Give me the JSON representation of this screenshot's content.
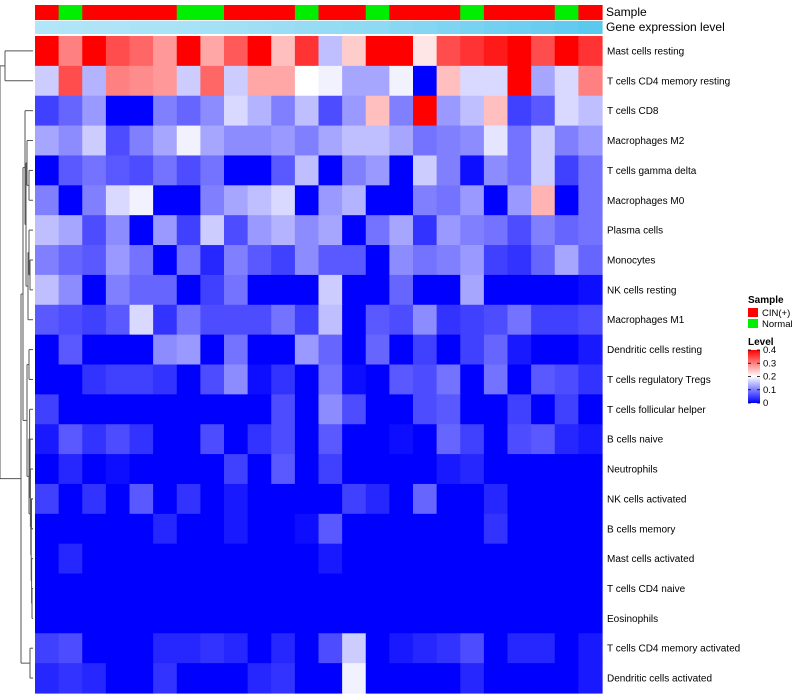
{
  "chart_data": {
    "type": "heatmap",
    "title": "",
    "annotation_labels": {
      "sample": "Sample",
      "expression": "Gene expression level"
    },
    "sample_groups": [
      "CIN(+)",
      "Normal",
      "CIN(+)",
      "CIN(+)",
      "CIN(+)",
      "CIN(+)",
      "Normal",
      "Normal",
      "CIN(+)",
      "CIN(+)",
      "CIN(+)",
      "Normal",
      "CIN(+)",
      "CIN(+)",
      "Normal",
      "CIN(+)",
      "CIN(+)",
      "CIN(+)",
      "Normal",
      "CIN(+)",
      "CIN(+)",
      "CIN(+)",
      "Normal",
      "CIN(+)"
    ],
    "expression_level_bar": [
      0.02,
      0.03,
      0.04,
      0.05,
      0.06,
      0.07,
      0.08,
      0.1,
      0.12,
      0.14,
      0.16,
      0.18,
      0.2,
      0.22,
      0.24,
      0.27,
      0.3,
      0.33,
      0.36,
      0.4,
      0.43,
      0.46,
      0.5,
      0.55
    ],
    "rows": [
      "Mast cells resting",
      "T cells CD4 memory resting",
      "T cells CD8",
      "Macrophages M2",
      "T cells gamma delta",
      "Macrophages M0",
      "Plasma cells",
      "Monocytes",
      "NK cells resting",
      "Macrophages M1",
      "Dendritic cells resting",
      "T cells regulatory  Tregs",
      "T cells follicular helper",
      "B cells naive",
      "Neutrophils",
      "NK cells activated",
      "B cells memory",
      "Mast cells activated",
      "T cells CD4 naive",
      "Eosinophils",
      "T cells CD4 memory activated",
      "Dendritic cells activated"
    ],
    "values": [
      [
        0.4,
        0.3,
        0.4,
        0.34,
        0.32,
        0.28,
        0.4,
        0.27,
        0.33,
        0.4,
        0.25,
        0.36,
        0.15,
        0.24,
        0.4,
        0.4,
        0.22,
        0.34,
        0.36,
        0.38,
        0.4,
        0.34,
        0.4,
        0.36
      ],
      [
        0.16,
        0.34,
        0.14,
        0.3,
        0.29,
        0.28,
        0.16,
        0.32,
        0.16,
        0.27,
        0.27,
        0.2,
        0.19,
        0.13,
        0.13,
        0.19,
        0.0,
        0.25,
        0.17,
        0.17,
        0.4,
        0.13,
        0.17,
        0.3
      ],
      [
        0.05,
        0.08,
        0.12,
        0.0,
        0.0,
        0.1,
        0.08,
        0.11,
        0.17,
        0.14,
        0.1,
        0.15,
        0.06,
        0.12,
        0.25,
        0.1,
        0.4,
        0.12,
        0.15,
        0.25,
        0.05,
        0.07,
        0.17,
        0.15
      ],
      [
        0.13,
        0.11,
        0.16,
        0.06,
        0.1,
        0.13,
        0.19,
        0.13,
        0.11,
        0.11,
        0.12,
        0.1,
        0.13,
        0.15,
        0.15,
        0.13,
        0.09,
        0.1,
        0.11,
        0.18,
        0.09,
        0.16,
        0.1,
        0.12
      ],
      [
        0.0,
        0.07,
        0.09,
        0.07,
        0.06,
        0.09,
        0.06,
        0.09,
        0.0,
        0.0,
        0.07,
        0.15,
        0.0,
        0.1,
        0.12,
        0.0,
        0.16,
        0.1,
        0.01,
        0.11,
        0.09,
        0.16,
        0.05,
        0.09
      ],
      [
        0.1,
        0.0,
        0.1,
        0.17,
        0.19,
        0.0,
        0.0,
        0.1,
        0.13,
        0.15,
        0.17,
        0.0,
        0.12,
        0.14,
        0.0,
        0.0,
        0.1,
        0.09,
        0.12,
        0.0,
        0.12,
        0.26,
        0.0,
        0.09
      ],
      [
        0.15,
        0.13,
        0.06,
        0.11,
        0.0,
        0.12,
        0.05,
        0.16,
        0.06,
        0.12,
        0.14,
        0.11,
        0.13,
        0.0,
        0.09,
        0.13,
        0.04,
        0.12,
        0.1,
        0.09,
        0.06,
        0.1,
        0.08,
        0.09
      ],
      [
        0.1,
        0.08,
        0.07,
        0.12,
        0.09,
        0.0,
        0.09,
        0.03,
        0.1,
        0.07,
        0.05,
        0.11,
        0.07,
        0.07,
        0.0,
        0.11,
        0.09,
        0.1,
        0.12,
        0.05,
        0.04,
        0.08,
        0.13,
        0.08
      ],
      [
        0.15,
        0.11,
        0.0,
        0.1,
        0.08,
        0.08,
        0.0,
        0.05,
        0.09,
        0.0,
        0.0,
        0.0,
        0.16,
        0.0,
        0.0,
        0.08,
        0.0,
        0.0,
        0.13,
        0.0,
        0.0,
        0.0,
        0.0,
        0.01
      ],
      [
        0.07,
        0.06,
        0.05,
        0.07,
        0.17,
        0.04,
        0.09,
        0.06,
        0.06,
        0.06,
        0.09,
        0.05,
        0.15,
        0.0,
        0.07,
        0.06,
        0.11,
        0.04,
        0.05,
        0.06,
        0.09,
        0.05,
        0.05,
        0.06
      ],
      [
        0.0,
        0.07,
        0.0,
        0.0,
        0.0,
        0.11,
        0.12,
        0.0,
        0.09,
        0.0,
        0.0,
        0.12,
        0.08,
        0.0,
        0.08,
        0.0,
        0.05,
        0.0,
        0.05,
        0.08,
        0.02,
        0.0,
        0.0,
        0.02
      ],
      [
        0.0,
        0.0,
        0.04,
        0.05,
        0.05,
        0.04,
        0.0,
        0.06,
        0.11,
        0.01,
        0.04,
        0.0,
        0.09,
        0.01,
        0.0,
        0.07,
        0.06,
        0.09,
        0.0,
        0.09,
        0.0,
        0.07,
        0.06,
        0.04
      ],
      [
        0.05,
        0.0,
        0.0,
        0.0,
        0.0,
        0.0,
        0.0,
        0.0,
        0.0,
        0.0,
        0.06,
        0.0,
        0.11,
        0.06,
        0.0,
        0.0,
        0.06,
        0.07,
        0.0,
        0.0,
        0.05,
        0.0,
        0.05,
        0.0
      ],
      [
        0.02,
        0.07,
        0.04,
        0.06,
        0.04,
        0.0,
        0.0,
        0.06,
        0.0,
        0.04,
        0.06,
        0.0,
        0.07,
        0.0,
        0.0,
        0.01,
        0.0,
        0.08,
        0.05,
        0.0,
        0.06,
        0.07,
        0.03,
        0.02
      ],
      [
        0.0,
        0.03,
        0.0,
        0.01,
        0.0,
        0.0,
        0.0,
        0.0,
        0.05,
        0.0,
        0.07,
        0.0,
        0.05,
        0.0,
        0.0,
        0.0,
        0.0,
        0.02,
        0.03,
        0.0,
        0.0,
        0.0,
        0.0,
        0.0
      ],
      [
        0.05,
        0.0,
        0.04,
        0.0,
        0.07,
        0.0,
        0.04,
        0.0,
        0.02,
        0.0,
        0.0,
        0.0,
        0.0,
        0.05,
        0.03,
        0.0,
        0.08,
        0.0,
        0.0,
        0.03,
        0.0,
        0.0,
        0.0,
        0.0
      ],
      [
        0.0,
        0.0,
        0.0,
        0.0,
        0.0,
        0.03,
        0.0,
        0.0,
        0.02,
        0.0,
        0.0,
        0.01,
        0.07,
        0.0,
        0.0,
        0.0,
        0.0,
        0.0,
        0.0,
        0.04,
        0.0,
        0.0,
        0.0,
        0.0
      ],
      [
        0.0,
        0.03,
        0.0,
        0.0,
        0.0,
        0.0,
        0.0,
        0.0,
        0.0,
        0.0,
        0.0,
        0.0,
        0.02,
        0.0,
        0.0,
        0.0,
        0.0,
        0.0,
        0.0,
        0.0,
        0.0,
        0.0,
        0.0,
        0.0
      ],
      [
        0.0,
        0.0,
        0.0,
        0.0,
        0.0,
        0.0,
        0.0,
        0.0,
        0.0,
        0.0,
        0.0,
        0.0,
        0.0,
        0.0,
        0.0,
        0.0,
        0.0,
        0.0,
        0.0,
        0.0,
        0.0,
        0.0,
        0.0,
        0.0
      ],
      [
        0.0,
        0.0,
        0.0,
        0.0,
        0.0,
        0.0,
        0.0,
        0.0,
        0.0,
        0.0,
        0.0,
        0.0,
        0.0,
        0.0,
        0.0,
        0.0,
        0.0,
        0.0,
        0.0,
        0.0,
        0.0,
        0.0,
        0.0,
        0.0
      ],
      [
        0.05,
        0.06,
        0.0,
        0.0,
        0.0,
        0.03,
        0.03,
        0.04,
        0.03,
        0.0,
        0.03,
        0.0,
        0.06,
        0.16,
        0.0,
        0.02,
        0.03,
        0.04,
        0.06,
        0.0,
        0.03,
        0.03,
        0.0,
        0.02
      ],
      [
        0.03,
        0.04,
        0.03,
        0.0,
        0.0,
        0.04,
        0.0,
        0.0,
        0.0,
        0.03,
        0.04,
        0.0,
        0.0,
        0.19,
        0.0,
        0.0,
        0.0,
        0.0,
        0.03,
        0.0,
        0.0,
        0.0,
        0.0,
        0.02
      ]
    ],
    "color_scale": {
      "low": "#0000ff",
      "mid": "#ffffff",
      "high": "#ff0000",
      "min": 0,
      "mid_value": 0.2,
      "max": 0.4
    },
    "sample_colors": {
      "CIN(+)": "#ff0000",
      "Normal": "#00ee00"
    },
    "expression_bar_colors": {
      "low": "#ffffff",
      "high": "#5bc8ee"
    },
    "legend": {
      "sample_title": "Sample",
      "sample_items": [
        "CIN(+)",
        "Normal"
      ],
      "level_title": "Level",
      "level_ticks": [
        0,
        0.1,
        0.2,
        0.3,
        0.4
      ],
      "level_tick_labels": [
        "0",
        "0.1",
        "0.2",
        "0.3",
        "0.4"
      ],
      "placement": "right"
    }
  }
}
